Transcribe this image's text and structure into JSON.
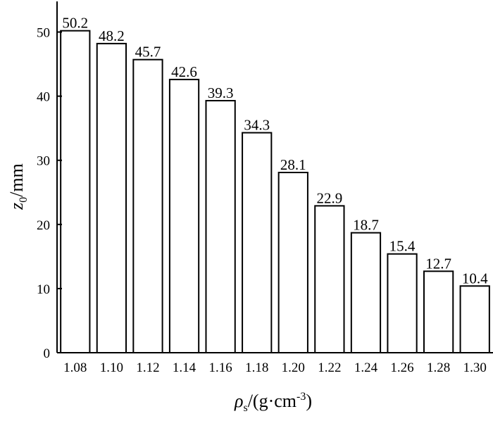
{
  "chart_data": {
    "type": "bar",
    "title": "",
    "categories": [
      "1.08",
      "1.10",
      "1.12",
      "1.14",
      "1.16",
      "1.18",
      "1.20",
      "1.22",
      "1.24",
      "1.26",
      "1.28",
      "1.30"
    ],
    "values": [
      50.2,
      48.2,
      45.7,
      42.6,
      39.3,
      34.3,
      28.1,
      22.9,
      18.7,
      15.4,
      12.7,
      10.4
    ],
    "data_labels": [
      "50.2",
      "48.2",
      "45.7",
      "42.6",
      "39.3",
      "34.3",
      "28.1",
      "22.9",
      "18.7",
      "15.4",
      "12.7",
      "10.4"
    ],
    "xlabel": {
      "symbol": "ρ",
      "subscript": "s",
      "unit": "/(g·cm",
      "superscript": "-3",
      "close": ")"
    },
    "ylabel": {
      "symbol": "z",
      "subscript": "0",
      "unit": "/mm"
    },
    "ylim": [
      0,
      55
    ],
    "yticks": [
      "0",
      "10",
      "20",
      "30",
      "40",
      "50"
    ],
    "grid": false,
    "legend": "none",
    "bar_fill": "#ffffff",
    "bar_stroke": "#000000"
  }
}
